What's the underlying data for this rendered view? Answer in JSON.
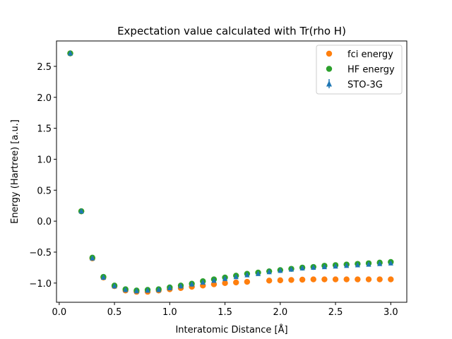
{
  "chart_data": {
    "type": "scatter",
    "title": "Expectation value calculated with Tr(rho H)",
    "xlabel": "Interatomic Distance [Å]",
    "ylabel": "Energy (Hartree) [a.u.]",
    "xlim": [
      -0.0245,
      3.145
    ],
    "ylim": [
      -1.31,
      2.91
    ],
    "xticks": [
      {
        "value": 0.0,
        "label": "0.0"
      },
      {
        "value": 0.5,
        "label": "0.5"
      },
      {
        "value": 1.0,
        "label": "1.0"
      },
      {
        "value": 1.5,
        "label": "1.5"
      },
      {
        "value": 2.0,
        "label": "2.0"
      },
      {
        "value": 2.5,
        "label": "2.5"
      },
      {
        "value": 3.0,
        "label": "3.0"
      }
    ],
    "yticks": [
      {
        "value": -1.0,
        "label": "−1.0"
      },
      {
        "value": -0.5,
        "label": "−0.5"
      },
      {
        "value": 0.0,
        "label": "0.0"
      },
      {
        "value": 0.5,
        "label": "0.5"
      },
      {
        "value": 1.0,
        "label": "1.0"
      },
      {
        "value": 1.5,
        "label": "1.5"
      },
      {
        "value": 2.0,
        "label": "2.0"
      },
      {
        "value": 2.5,
        "label": "2.5"
      }
    ],
    "grid": false,
    "legend_position": "top-right",
    "x": [
      0.1,
      0.2,
      0.3,
      0.4,
      0.5,
      0.6,
      0.7,
      0.8,
      0.9,
      1.0,
      1.1,
      1.2,
      1.3,
      1.4,
      1.5,
      1.6,
      1.7,
      1.8,
      1.9,
      2.0,
      2.1,
      2.2,
      2.3,
      2.4,
      2.5,
      2.6,
      2.7,
      2.8,
      2.9,
      3.0
    ],
    "series": [
      {
        "name": "fci energy",
        "marker": "circle",
        "color": "#ff7f0e",
        "x": [
          0.1,
          0.2,
          0.3,
          0.4,
          0.5,
          0.6,
          0.7,
          0.8,
          0.9,
          1.0,
          1.1,
          1.2,
          1.3,
          1.4,
          1.5,
          1.6,
          1.7,
          1.9,
          2.0,
          2.1,
          2.2,
          2.3,
          2.4,
          2.5,
          2.6,
          2.7,
          2.8,
          2.9,
          3.0
        ],
        "values": [
          2.71,
          0.16,
          -0.6,
          -0.91,
          -1.05,
          -1.12,
          -1.14,
          -1.14,
          -1.12,
          -1.1,
          -1.08,
          -1.06,
          -1.04,
          -1.02,
          -1.0,
          -0.99,
          -0.98,
          -0.96,
          -0.955,
          -0.95,
          -0.945,
          -0.94,
          -0.94,
          -0.94,
          -0.94,
          -0.94,
          -0.94,
          -0.94,
          -0.94
        ]
      },
      {
        "name": "HF energy",
        "marker": "circle",
        "color": "#2ca02c",
        "values": [
          2.71,
          0.16,
          -0.59,
          -0.9,
          -1.04,
          -1.1,
          -1.12,
          -1.11,
          -1.1,
          -1.07,
          -1.04,
          -1.01,
          -0.97,
          -0.94,
          -0.91,
          -0.88,
          -0.85,
          -0.83,
          -0.81,
          -0.79,
          -0.77,
          -0.75,
          -0.74,
          -0.72,
          -0.71,
          -0.7,
          -0.69,
          -0.68,
          -0.67,
          -0.66
        ]
      },
      {
        "name": "STO-3G",
        "marker": "triangle",
        "color": "#1f77b4",
        "values": [
          2.71,
          0.16,
          -0.6,
          -0.91,
          -1.05,
          -1.11,
          -1.13,
          -1.12,
          -1.11,
          -1.08,
          -1.05,
          -1.02,
          -0.99,
          -0.96,
          -0.93,
          -0.9,
          -0.87,
          -0.85,
          -0.82,
          -0.8,
          -0.78,
          -0.76,
          -0.75,
          -0.74,
          -0.73,
          -0.72,
          -0.71,
          -0.7,
          -0.69,
          -0.68
        ]
      }
    ]
  }
}
